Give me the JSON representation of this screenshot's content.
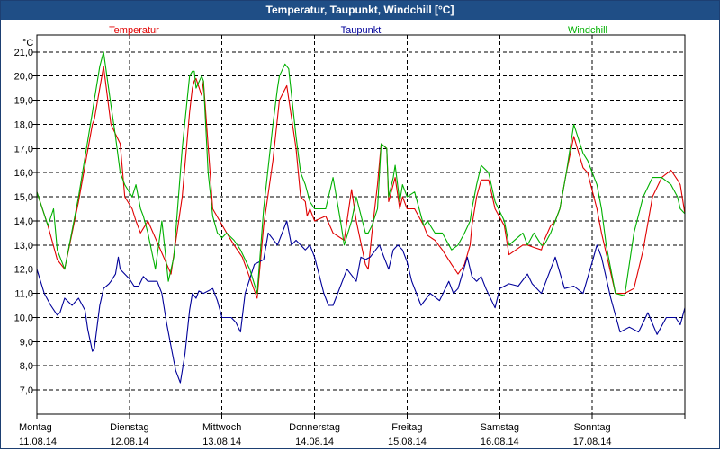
{
  "window": {
    "title": "Temperatur, Taupunkt, Windchill [°C]"
  },
  "colors": {
    "temperatur": "#e00000",
    "taupunkt": "#000099",
    "windchill": "#00b000",
    "titlebar": "#1f4e86",
    "grid": "#000000"
  },
  "chart_data": {
    "type": "line",
    "title": "Temperatur, Taupunkt, Windchill [°C]",
    "ylabel": "°C",
    "xlabel": "",
    "ylim": [
      6.0,
      21.7
    ],
    "xlim": [
      0,
      7
    ],
    "yticks": [
      7.0,
      8.0,
      9.0,
      10.0,
      11.0,
      12.0,
      13.0,
      14.0,
      15.0,
      16.0,
      17.0,
      18.0,
      19.0,
      20.0,
      21.0
    ],
    "ytick_labels": [
      "7,0",
      "8,0",
      "9,0",
      "10,0",
      "11,0",
      "12,0",
      "13,0",
      "14,0",
      "15,0",
      "16,0",
      "17,0",
      "18,0",
      "19,0",
      "20,0",
      "21,0"
    ],
    "x_tick_positions": [
      0,
      1,
      2,
      3,
      4,
      5,
      6,
      7
    ],
    "x_ticks": [
      {
        "day": "Montag",
        "date": "11.08.14"
      },
      {
        "day": "Dienstag",
        "date": "12.08.14"
      },
      {
        "day": "Mittwoch",
        "date": "13.08.14"
      },
      {
        "day": "Donnerstag",
        "date": "14.08.14"
      },
      {
        "day": "Freitag",
        "date": "15.08.14"
      },
      {
        "day": "Samstag",
        "date": "16.08.14"
      },
      {
        "day": "Sonntag",
        "date": "17.08.14"
      }
    ],
    "legend_placement": "top",
    "grid": true,
    "series": [
      {
        "name": "Temperatur",
        "color": "#e00000",
        "x": [
          0,
          0.12,
          0.22,
          0.3,
          0.45,
          0.6,
          0.62,
          0.68,
          0.72,
          0.8,
          0.9,
          0.95,
          1.03,
          1.07,
          1.12,
          1.2,
          1.45,
          1.57,
          1.65,
          1.68,
          1.7,
          1.72,
          1.78,
          1.8,
          1.9,
          2.05,
          2.13,
          2.22,
          2.38,
          2.45,
          2.55,
          2.62,
          2.7,
          2.8,
          2.85,
          2.9,
          2.92,
          2.95,
          3.0,
          3.12,
          3.2,
          3.32,
          3.4,
          3.45,
          3.55,
          3.58,
          3.62,
          3.68,
          3.72,
          3.78,
          3.8,
          3.87,
          3.92,
          3.95,
          4.0,
          4.08,
          4.18,
          4.22,
          4.3,
          4.38,
          4.48,
          4.55,
          4.62,
          4.68,
          4.7,
          4.75,
          4.8,
          4.88,
          4.95,
          5.05,
          5.1,
          5.25,
          5.3,
          5.37,
          5.45,
          5.48,
          5.55,
          5.6,
          5.65,
          5.72,
          5.8,
          5.9,
          5.95,
          6.05,
          6.1,
          6.25,
          6.35,
          6.45,
          6.55,
          6.65,
          6.75,
          6.85,
          6.92,
          6.95,
          7.0
        ],
        "y": [
          15.2,
          13.8,
          12.4,
          12.0,
          14.8,
          18.0,
          18.2,
          19.5,
          20.4,
          18.0,
          17.2,
          15.0,
          14.5,
          14.0,
          13.5,
          14.0,
          11.8,
          15.0,
          18.5,
          19.5,
          19.8,
          19.9,
          19.2,
          19.8,
          14.5,
          13.5,
          13.0,
          12.5,
          10.8,
          13.8,
          16.5,
          19.0,
          19.6,
          17.0,
          15.0,
          14.8,
          14.2,
          14.5,
          14.0,
          14.2,
          13.5,
          13.2,
          15.3,
          14.0,
          12.2,
          12.0,
          13.5,
          15.5,
          17.2,
          17.0,
          14.8,
          15.8,
          14.5,
          15.0,
          14.5,
          14.5,
          13.8,
          13.4,
          13.2,
          12.8,
          12.2,
          11.8,
          12.2,
          13.0,
          13.8,
          15.0,
          15.7,
          15.7,
          14.5,
          13.8,
          12.6,
          13.0,
          13.0,
          12.9,
          12.8,
          13.2,
          13.8,
          14.0,
          14.5,
          16.0,
          17.5,
          16.2,
          16.0,
          14.5,
          13.5,
          11.0,
          11.0,
          11.2,
          12.8,
          15.0,
          15.8,
          16.1,
          15.7,
          15.5,
          14.3
        ]
      },
      {
        "name": "Taupunkt",
        "color": "#000099",
        "x": [
          0,
          0.08,
          0.15,
          0.22,
          0.25,
          0.3,
          0.38,
          0.45,
          0.52,
          0.55,
          0.6,
          0.62,
          0.68,
          0.72,
          0.78,
          0.8,
          0.85,
          0.88,
          0.9,
          0.95,
          1.0,
          1.05,
          1.1,
          1.15,
          1.2,
          1.3,
          1.35,
          1.4,
          1.45,
          1.5,
          1.55,
          1.6,
          1.65,
          1.68,
          1.72,
          1.75,
          1.8,
          1.9,
          1.95,
          2.0,
          2.1,
          2.15,
          2.2,
          2.25,
          2.35,
          2.45,
          2.5,
          2.6,
          2.7,
          2.75,
          2.8,
          2.9,
          2.95,
          3.0,
          3.1,
          3.15,
          3.2,
          3.3,
          3.35,
          3.45,
          3.5,
          3.55,
          3.6,
          3.7,
          3.75,
          3.8,
          3.85,
          3.9,
          3.95,
          4.0,
          4.05,
          4.15,
          4.25,
          4.35,
          4.45,
          4.5,
          4.55,
          4.65,
          4.7,
          4.75,
          4.8,
          4.85,
          4.95,
          5.0,
          5.1,
          5.2,
          5.3,
          5.35,
          5.45,
          5.5,
          5.6,
          5.7,
          5.8,
          5.9,
          6.0,
          6.05,
          6.1,
          6.2,
          6.3,
          6.4,
          6.5,
          6.6,
          6.7,
          6.8,
          6.9,
          6.95,
          7.0
        ],
        "y": [
          12.0,
          11.0,
          10.5,
          10.1,
          10.2,
          10.8,
          10.5,
          10.8,
          10.3,
          9.5,
          8.6,
          8.7,
          10.5,
          11.2,
          11.4,
          11.5,
          11.8,
          12.5,
          12.0,
          11.8,
          11.6,
          11.3,
          11.3,
          11.7,
          11.5,
          11.5,
          11.0,
          9.8,
          8.8,
          7.8,
          7.3,
          8.5,
          10.3,
          11.0,
          10.8,
          11.1,
          11.0,
          11.2,
          10.7,
          10.0,
          10.0,
          9.8,
          9.4,
          11.0,
          12.2,
          12.4,
          13.5,
          13.0,
          14.0,
          13.0,
          13.2,
          12.8,
          13.0,
          12.5,
          11.0,
          10.5,
          10.5,
          11.5,
          12.0,
          11.5,
          12.5,
          12.4,
          12.5,
          13.0,
          12.5,
          12.0,
          12.8,
          13.0,
          12.8,
          12.3,
          11.5,
          10.5,
          11.0,
          10.7,
          11.5,
          11.0,
          11.2,
          12.5,
          11.7,
          11.5,
          11.7,
          11.2,
          10.4,
          11.2,
          11.4,
          11.3,
          11.8,
          11.4,
          11.0,
          11.5,
          12.5,
          11.2,
          11.3,
          11.0,
          12.3,
          13.0,
          12.5,
          10.8,
          9.4,
          9.6,
          9.4,
          10.2,
          9.3,
          10.0,
          10.0,
          9.7,
          10.4
        ]
      },
      {
        "name": "Windchill",
        "color": "#00b000",
        "x": [
          0,
          0.12,
          0.18,
          0.22,
          0.3,
          0.45,
          0.6,
          0.62,
          0.68,
          0.72,
          0.8,
          0.85,
          0.9,
          0.95,
          1.03,
          1.07,
          1.12,
          1.15,
          1.2,
          1.28,
          1.35,
          1.42,
          1.48,
          1.57,
          1.65,
          1.68,
          1.7,
          1.72,
          1.78,
          1.8,
          1.85,
          1.9,
          1.95,
          2.0,
          2.05,
          2.13,
          2.2,
          2.3,
          2.38,
          2.45,
          2.55,
          2.6,
          2.62,
          2.68,
          2.72,
          2.8,
          2.85,
          2.9,
          2.95,
          3.0,
          3.05,
          3.12,
          3.2,
          3.28,
          3.32,
          3.4,
          3.45,
          3.55,
          3.58,
          3.62,
          3.68,
          3.72,
          3.78,
          3.8,
          3.85,
          3.87,
          3.92,
          3.95,
          4.0,
          4.08,
          4.18,
          4.22,
          4.3,
          4.38,
          4.48,
          4.55,
          4.62,
          4.68,
          4.7,
          4.75,
          4.8,
          4.88,
          4.95,
          5.05,
          5.1,
          5.25,
          5.3,
          5.37,
          5.45,
          5.48,
          5.55,
          5.6,
          5.65,
          5.72,
          5.8,
          5.9,
          5.95,
          6.05,
          6.1,
          6.15,
          6.25,
          6.35,
          6.45,
          6.55,
          6.65,
          6.75,
          6.85,
          6.92,
          6.95,
          7.0
        ],
        "y": [
          15.2,
          13.8,
          14.5,
          12.8,
          12.0,
          15.0,
          18.5,
          19.0,
          20.4,
          21.0,
          18.8,
          17.5,
          16.0,
          15.5,
          15.0,
          15.5,
          14.5,
          14.2,
          13.5,
          12.0,
          14.0,
          11.5,
          12.5,
          17.0,
          20.0,
          20.2,
          20.2,
          19.5,
          20.0,
          19.8,
          16.0,
          14.2,
          13.5,
          13.3,
          13.5,
          13.2,
          12.8,
          12.0,
          11.0,
          14.5,
          18.0,
          19.5,
          20.0,
          20.5,
          20.3,
          17.5,
          16.0,
          15.5,
          14.8,
          14.5,
          14.5,
          14.5,
          15.8,
          14.0,
          13.0,
          14.0,
          15.0,
          13.5,
          13.5,
          13.8,
          14.5,
          17.2,
          17.0,
          15.0,
          15.8,
          16.3,
          14.8,
          15.5,
          15.0,
          15.2,
          13.8,
          14.0,
          13.5,
          13.5,
          12.8,
          13.0,
          13.5,
          14.0,
          14.5,
          15.5,
          16.3,
          16.0,
          14.8,
          14.0,
          13.0,
          13.5,
          13.0,
          13.5,
          13.0,
          13.0,
          13.5,
          14.0,
          14.5,
          16.0,
          18.0,
          16.8,
          16.5,
          15.5,
          14.5,
          13.0,
          11.0,
          10.9,
          13.5,
          15.0,
          15.8,
          15.8,
          15.5,
          15.0,
          14.5,
          14.3
        ]
      }
    ]
  }
}
